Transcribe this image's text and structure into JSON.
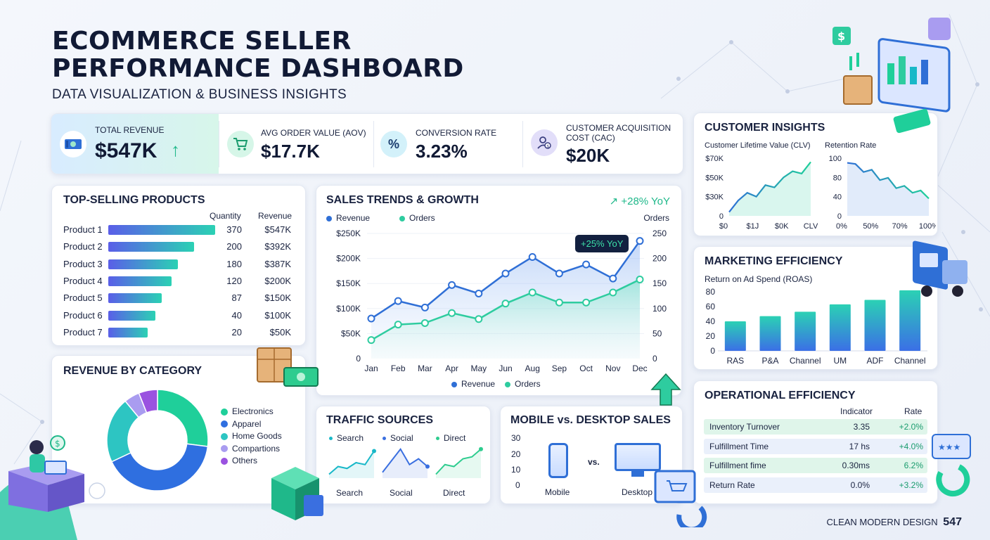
{
  "header": {
    "title_line1": "ECOMMERCE SELLER",
    "title_line2": "PERFORMANCE DASHBOARD",
    "subtitle": "DATA VISUALIZATION & BUSINESS INSIGHTS"
  },
  "kpis": [
    {
      "label": "TOTAL REVENUE",
      "value": "$547K",
      "icon": "money-icon",
      "trend": "↑"
    },
    {
      "label": "AVG ORDER VALUE (AOV)",
      "value": "$17.7K",
      "icon": "cart-icon"
    },
    {
      "label": "CONVERSION RATE",
      "value": "3.23%",
      "icon": "percent-icon"
    },
    {
      "label_line1": "CUSTOMER ACQUISITION",
      "label_line2": "COST (CAC)",
      "value": "$20K",
      "icon": "user-dollar-icon"
    }
  ],
  "top_products": {
    "title": "TOP-SELLING PRODUCTS",
    "col_quantity": "Quantity",
    "col_revenue": "Revenue",
    "rows": [
      {
        "name": "Product 1",
        "quantity": "370",
        "revenue": "$547K",
        "share": 1.0
      },
      {
        "name": "Product 2",
        "quantity": "200",
        "revenue": "$392K",
        "share": 0.8
      },
      {
        "name": "Product 3",
        "quantity": "180",
        "revenue": "$387K",
        "share": 0.65
      },
      {
        "name": "Product 4",
        "quantity": "120",
        "revenue": "$200K",
        "share": 0.59
      },
      {
        "name": "Product 5",
        "quantity": "87",
        "revenue": "$150K",
        "share": 0.5
      },
      {
        "name": "Product 6",
        "quantity": "40",
        "revenue": "$100K",
        "share": 0.44
      },
      {
        "name": "Product 7",
        "quantity": "20",
        "revenue": "$50K",
        "share": 0.37
      }
    ]
  },
  "sales_trends": {
    "title": "SALES TRENDS & GROWTH",
    "growth_badge": "↗ +28% YoY",
    "callout": "+25% YoY",
    "legend_revenue": "Revenue",
    "legend_orders": "Orders",
    "right_axis_title": "Orders",
    "colors": {
      "revenue": "#2f6fd6",
      "orders": "#2ecc9f"
    }
  },
  "revenue_by_category": {
    "title": "REVENUE BY CATEGORY"
  },
  "traffic_sources": {
    "title": "TRAFFIC SOURCES",
    "items": [
      {
        "legend": "Search",
        "label": "Search",
        "color": "#19b8c8"
      },
      {
        "legend": "Social",
        "label": "Social",
        "color": "#3a6fe0"
      },
      {
        "legend": "Direct",
        "label": "Direct",
        "color": "#2ecc8f"
      }
    ]
  },
  "mobile_desktop": {
    "title": "MOBILE vs. DESKTOP SALES",
    "axis_ticks": [
      "30",
      "20",
      "10",
      "0"
    ],
    "vs": "vs.",
    "mobile_label": "Mobile",
    "desktop_label": "Desktop"
  },
  "customer_insights": {
    "title": "CUSTOMER INSIGHTS",
    "clv_label": "Customer Lifetime Value (CLV)",
    "retention_label": "Retention Rate",
    "clv_yticks": [
      "$70K",
      "$50K",
      "$30K",
      "0"
    ],
    "clv_xticks": [
      "$0",
      "$1J",
      "$0K",
      "CLV"
    ],
    "ret_yticks": [
      "100",
      "80",
      "40",
      "0"
    ],
    "ret_xticks": [
      "0%",
      "50%",
      "70%",
      "100%"
    ]
  },
  "marketing": {
    "title": "MARKETING EFFICIENCY",
    "subtitle": "Return on Ad Spend (ROAS)"
  },
  "operational": {
    "title": "OPERATIONAL EFFICIENCY",
    "col_indicator": "Indicator",
    "col_rate": "Rate",
    "rows": [
      {
        "name": "Inventory Turnover",
        "indicator": "3.35",
        "rate": "+2.0%"
      },
      {
        "name": "Fulfillment Time",
        "indicator": "17 hs",
        "rate": "+4.0%"
      },
      {
        "name": "Fulfillment fime",
        "indicator": "0.30ms",
        "rate": "6.2%"
      },
      {
        "name": "Return Rate",
        "indicator": "0.0%",
        "rate": "+3.2%"
      }
    ]
  },
  "footer": {
    "label": "CLEAN MODERN DESIGN",
    "number": "547"
  },
  "chart_data": [
    {
      "type": "line",
      "title": "SALES TRENDS & GROWTH",
      "categories": [
        "Jan",
        "Feb",
        "Mar",
        "Apr",
        "May",
        "Jun",
        "Aug",
        "Sep",
        "Oct",
        "Nov",
        "Dec"
      ],
      "y_ticks": [
        "$250K",
        "$200K",
        "$150K",
        "$100K",
        "$50K",
        "0"
      ],
      "y2_ticks": [
        "250",
        "200",
        "150",
        "100",
        "50",
        "0"
      ],
      "ylim": [
        0,
        250
      ],
      "series": [
        {
          "name": "Revenue",
          "axis": "left",
          "unit": "$K",
          "values": [
            80,
            115,
            102,
            147,
            130,
            170,
            203,
            170,
            188,
            160,
            235
          ]
        },
        {
          "name": "Orders",
          "axis": "right",
          "values": [
            37,
            68,
            71,
            91,
            79,
            110,
            132,
            112,
            112,
            132,
            158
          ]
        }
      ]
    },
    {
      "type": "pie",
      "title": "REVENUE BY CATEGORY",
      "donut": true,
      "slices": [
        {
          "label": "Electronics",
          "value": 27,
          "color": "#1fcf9a"
        },
        {
          "label": "Apparel",
          "value": 41,
          "color": "#2f6fe0"
        },
        {
          "label": "Home Goods",
          "value": 21,
          "color": "#2dc5c2"
        },
        {
          "label": "Compartions",
          "value": 5,
          "color": "#a99cf0"
        },
        {
          "label": "Others",
          "value": 6,
          "color": "#9a52e0"
        }
      ]
    },
    {
      "type": "bar",
      "title": "Return on Ad Spend (ROAS)",
      "categories": [
        "RAS",
        "P&A",
        "Channel",
        "UM",
        "ADF",
        "Channel"
      ],
      "values": [
        40,
        47,
        53,
        63,
        69,
        82
      ],
      "y_ticks": [
        "80",
        "60",
        "40",
        "20",
        "0"
      ],
      "ylim": [
        0,
        80
      ]
    },
    {
      "type": "line",
      "title": "Customer Lifetime Value (CLV)",
      "x_ticks": [
        "$0",
        "$1J",
        "$0K",
        "CLV"
      ],
      "values": [
        5,
        20,
        30,
        25,
        40,
        37,
        50,
        58,
        55,
        70
      ]
    },
    {
      "type": "line",
      "title": "Retention Rate",
      "x_ticks": [
        "0%",
        "50%",
        "70%",
        "100%"
      ],
      "values": [
        92,
        90,
        76,
        80,
        62,
        66,
        48,
        52,
        40,
        44,
        30
      ]
    },
    {
      "type": "line",
      "title": "TRAFFIC SOURCES",
      "series": [
        {
          "name": "Search",
          "values": [
            4,
            12,
            10,
            16,
            14,
            28
          ]
        },
        {
          "name": "Social",
          "values": [
            6,
            18,
            30,
            14,
            20,
            12
          ]
        },
        {
          "name": "Direct",
          "values": [
            4,
            14,
            12,
            20,
            22,
            30
          ]
        }
      ]
    }
  ]
}
